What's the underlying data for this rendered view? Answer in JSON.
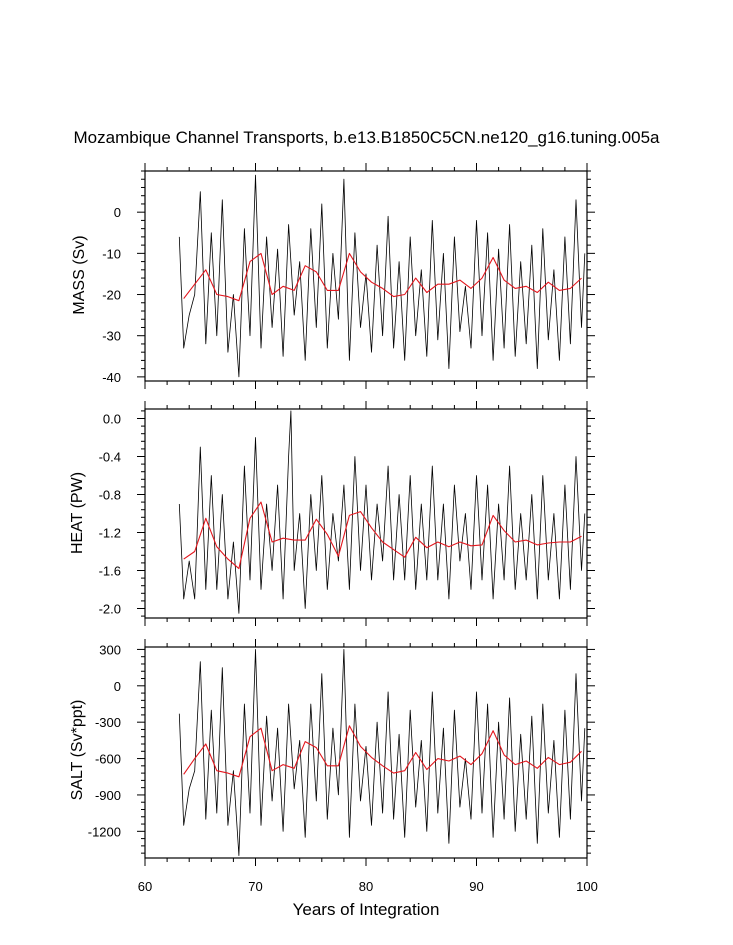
{
  "chart_data": {
    "type": "line",
    "title": "Mozambique Channel Transports, b.e13.B1850C5CN.ne120_g16.tuning.005a",
    "xlabel": "Years of Integration",
    "x_ticks": [
      "60",
      "70",
      "80",
      "90",
      "100"
    ],
    "xlim": [
      60,
      100
    ],
    "panels": [
      {
        "ylabel": "MASS (Sv)",
        "ylim": [
          -41,
          10
        ],
        "yticks": [
          0,
          -10,
          -20,
          -30,
          -40
        ],
        "ytick_labels": [
          "0",
          "-10",
          "-20",
          "-30",
          "-40"
        ],
        "series": [
          {
            "color": "#000000",
            "style": "monthly",
            "x": [
              63.1,
              63.5,
              64.0,
              64.5,
              65.0,
              65.5,
              66.0,
              66.5,
              67.0,
              67.5,
              68.0,
              68.5,
              69.0,
              69.5,
              70.0,
              70.5,
              71.0,
              71.5,
              72.0,
              72.5,
              73.0,
              73.5,
              74.0,
              74.5,
              75.0,
              75.5,
              76.0,
              76.5,
              77.0,
              77.5,
              78.0,
              78.5,
              79.0,
              79.5,
              80.0,
              80.5,
              81.0,
              81.5,
              82.0,
              82.5,
              83.0,
              83.5,
              84.0,
              84.5,
              85.0,
              85.5,
              86.0,
              86.5,
              87.0,
              87.5,
              88.0,
              88.5,
              89.0,
              89.5,
              90.0,
              90.5,
              91.0,
              91.5,
              92.0,
              92.5,
              93.0,
              93.5,
              94.0,
              94.5,
              95.0,
              95.5,
              96.0,
              96.5,
              97.0,
              97.5,
              98.0,
              98.5,
              99.0,
              99.5,
              99.8
            ],
            "y": [
              -6,
              -33,
              -25,
              -20,
              5,
              -32,
              -5,
              -30,
              3,
              -34,
              -20,
              -40,
              -4,
              -30,
              9,
              -33,
              -6,
              -28,
              -9,
              -35,
              -3,
              -25,
              -12,
              -36,
              -4,
              -28,
              2,
              -33,
              -10,
              -26,
              8,
              -36,
              -5,
              -28,
              -15,
              -34,
              -8,
              -30,
              -1,
              -33,
              -12,
              -36,
              -6,
              -30,
              -14,
              -35,
              -2,
              -31,
              -10,
              -38,
              -6,
              -29,
              -18,
              -33,
              -2,
              -30,
              -5,
              -36,
              -9,
              -33,
              -3,
              -35,
              -12,
              -32,
              -8,
              -38,
              -4,
              -31,
              -14,
              -36,
              -6,
              -32,
              3,
              -28,
              -10
            ]
          },
          {
            "color": "#e3161d",
            "style": "annual",
            "x": [
              63.5,
              64.5,
              65.5,
              66.5,
              67.5,
              68.5,
              69.5,
              70.5,
              71.5,
              72.5,
              73.5,
              74.5,
              75.5,
              76.5,
              77.5,
              78.5,
              79.5,
              80.5,
              81.5,
              82.5,
              83.5,
              84.5,
              85.5,
              86.5,
              87.5,
              88.5,
              89.5,
              90.5,
              91.5,
              92.5,
              93.5,
              94.5,
              95.5,
              96.5,
              97.5,
              98.5,
              99.5
            ],
            "y": [
              -21,
              -17.5,
              -14,
              -20,
              -20.5,
              -21.5,
              -12,
              -10,
              -20,
              -18,
              -19,
              -13,
              -14.5,
              -19,
              -19,
              -10,
              -14.5,
              -17,
              -18.5,
              -20.5,
              -20,
              -16,
              -19.5,
              -17.5,
              -17.5,
              -16.5,
              -18.5,
              -16,
              -11,
              -16.5,
              -18.5,
              -18,
              -19.5,
              -17,
              -19,
              -18.5,
              -16
            ]
          }
        ]
      },
      {
        "ylabel": "HEAT (PW)",
        "ylim": [
          -2.1,
          0.1
        ],
        "yticks": [
          0.0,
          -0.4,
          -0.8,
          -1.2,
          -1.6,
          -2.0
        ],
        "ytick_labels": [
          "0.0",
          "-0.4",
          "-0.8",
          "-1.2",
          "-1.6",
          "-2.0"
        ],
        "series": [
          {
            "color": "#000000",
            "style": "monthly",
            "x": [
              63.1,
              63.5,
              64.0,
              64.5,
              65.0,
              65.5,
              66.0,
              66.5,
              67.0,
              67.5,
              68.0,
              68.5,
              69.0,
              69.5,
              70.0,
              70.5,
              71.0,
              71.5,
              72.0,
              72.5,
              73.0,
              73.2,
              73.5,
              74.0,
              74.5,
              75.0,
              75.5,
              76.0,
              76.5,
              77.0,
              77.5,
              78.0,
              78.5,
              79.0,
              79.5,
              80.0,
              80.5,
              81.0,
              81.5,
              82.0,
              82.5,
              83.0,
              83.5,
              84.0,
              84.5,
              85.0,
              85.5,
              86.0,
              86.5,
              87.0,
              87.5,
              88.0,
              88.5,
              89.0,
              89.5,
              90.0,
              90.5,
              91.0,
              91.5,
              92.0,
              92.5,
              93.0,
              93.5,
              94.0,
              94.5,
              95.0,
              95.5,
              96.0,
              96.5,
              97.0,
              97.5,
              98.0,
              98.5,
              99.0,
              99.5,
              99.8
            ],
            "y": [
              -0.9,
              -1.9,
              -1.5,
              -1.9,
              -0.3,
              -1.8,
              -0.6,
              -1.8,
              -0.8,
              -1.9,
              -1.3,
              -2.05,
              -0.5,
              -1.7,
              -0.2,
              -1.8,
              -0.9,
              -1.6,
              -0.7,
              -1.9,
              -0.4,
              0.08,
              -1.6,
              -1.0,
              -2.0,
              -0.8,
              -1.6,
              -0.6,
              -1.8,
              -1.0,
              -1.5,
              -0.7,
              -1.8,
              -0.4,
              -1.6,
              -0.7,
              -1.7,
              -0.9,
              -1.5,
              -0.5,
              -1.7,
              -0.8,
              -1.7,
              -0.6,
              -1.8,
              -0.9,
              -1.7,
              -0.5,
              -1.7,
              -0.9,
              -1.9,
              -0.7,
              -1.5,
              -1.0,
              -1.8,
              -0.6,
              -1.7,
              -0.7,
              -1.9,
              -0.9,
              -1.7,
              -0.5,
              -1.8,
              -1.0,
              -1.7,
              -0.8,
              -1.9,
              -0.6,
              -1.7,
              -1.0,
              -1.9,
              -0.7,
              -1.8,
              -0.4,
              -1.6,
              -1.0
            ]
          },
          {
            "color": "#e3161d",
            "style": "annual",
            "x": [
              63.5,
              64.5,
              65.5,
              66.5,
              67.5,
              68.5,
              69.5,
              70.5,
              71.5,
              72.5,
              73.5,
              74.5,
              75.5,
              76.5,
              77.5,
              78.5,
              79.5,
              80.5,
              81.5,
              82.5,
              83.5,
              84.5,
              85.5,
              86.5,
              87.5,
              88.5,
              89.5,
              90.5,
              91.5,
              92.5,
              93.5,
              94.5,
              95.5,
              96.5,
              97.5,
              98.5,
              99.5
            ],
            "y": [
              -1.48,
              -1.4,
              -1.05,
              -1.35,
              -1.48,
              -1.58,
              -1.05,
              -0.88,
              -1.3,
              -1.26,
              -1.28,
              -1.28,
              -1.06,
              -1.22,
              -1.45,
              -1.02,
              -0.98,
              -1.15,
              -1.3,
              -1.38,
              -1.46,
              -1.25,
              -1.36,
              -1.3,
              -1.35,
              -1.3,
              -1.34,
              -1.33,
              -1.02,
              -1.18,
              -1.3,
              -1.28,
              -1.33,
              -1.31,
              -1.3,
              -1.3,
              -1.24
            ]
          }
        ]
      },
      {
        "ylabel": "SALT (Sv*ppt)",
        "ylim": [
          -1420,
          320
        ],
        "yticks": [
          300,
          0,
          -300,
          -600,
          -900,
          -1200
        ],
        "ytick_labels": [
          "300",
          "0",
          "-300",
          "-600",
          "-900",
          "-1200"
        ],
        "series": [
          {
            "color": "#000000",
            "style": "monthly",
            "x": [
              63.1,
              63.5,
              64.0,
              64.5,
              65.0,
              65.5,
              66.0,
              66.5,
              67.0,
              67.5,
              68.0,
              68.5,
              69.0,
              69.5,
              70.0,
              70.5,
              71.0,
              71.5,
              72.0,
              72.5,
              73.0,
              73.5,
              74.0,
              74.5,
              75.0,
              75.5,
              76.0,
              76.5,
              77.0,
              77.5,
              78.0,
              78.5,
              79.0,
              79.5,
              80.0,
              80.5,
              81.0,
              81.5,
              82.0,
              82.5,
              83.0,
              83.5,
              84.0,
              84.5,
              85.0,
              85.5,
              86.0,
              86.5,
              87.0,
              87.5,
              88.0,
              88.5,
              89.0,
              89.5,
              90.0,
              90.5,
              91.0,
              91.5,
              92.0,
              92.5,
              93.0,
              93.5,
              94.0,
              94.5,
              95.0,
              95.5,
              96.0,
              96.5,
              97.0,
              97.5,
              98.0,
              98.5,
              99.0,
              99.5,
              99.8
            ],
            "y": [
              -230,
              -1150,
              -850,
              -700,
              200,
              -1100,
              -200,
              -1050,
              150,
              -1150,
              -700,
              -1400,
              -150,
              -1050,
              300,
              -1150,
              -250,
              -950,
              -350,
              -1200,
              -150,
              -850,
              -450,
              -1250,
              -150,
              -950,
              100,
              -1100,
              -350,
              -900,
              300,
              -1250,
              -150,
              -950,
              -500,
              -1150,
              -300,
              -1050,
              -50,
              -1100,
              -400,
              -1250,
              -200,
              -1000,
              -450,
              -1200,
              -50,
              -1050,
              -350,
              -1300,
              -200,
              -1000,
              -600,
              -1100,
              -50,
              -1050,
              -150,
              -1250,
              -300,
              -1100,
              -100,
              -1200,
              -400,
              -1100,
              -250,
              -1300,
              -150,
              -1050,
              -450,
              -1250,
              -200,
              -1100,
              100,
              -950,
              -350
            ]
          },
          {
            "color": "#e3161d",
            "style": "annual",
            "x": [
              63.5,
              64.5,
              65.5,
              66.5,
              67.5,
              68.5,
              69.5,
              70.5,
              71.5,
              72.5,
              73.5,
              74.5,
              75.5,
              76.5,
              77.5,
              78.5,
              79.5,
              80.5,
              81.5,
              82.5,
              83.5,
              84.5,
              85.5,
              86.5,
              87.5,
              88.5,
              89.5,
              90.5,
              91.5,
              92.5,
              93.5,
              94.5,
              95.5,
              96.5,
              97.5,
              98.5,
              99.5
            ],
            "y": [
              -730,
              -600,
              -480,
              -700,
              -720,
              -750,
              -420,
              -350,
              -700,
              -650,
              -680,
              -460,
              -510,
              -660,
              -660,
              -330,
              -500,
              -590,
              -660,
              -720,
              -700,
              -550,
              -690,
              -600,
              -620,
              -580,
              -650,
              -560,
              -370,
              -570,
              -650,
              -620,
              -680,
              -590,
              -650,
              -630,
              -540
            ]
          }
        ]
      }
    ]
  }
}
